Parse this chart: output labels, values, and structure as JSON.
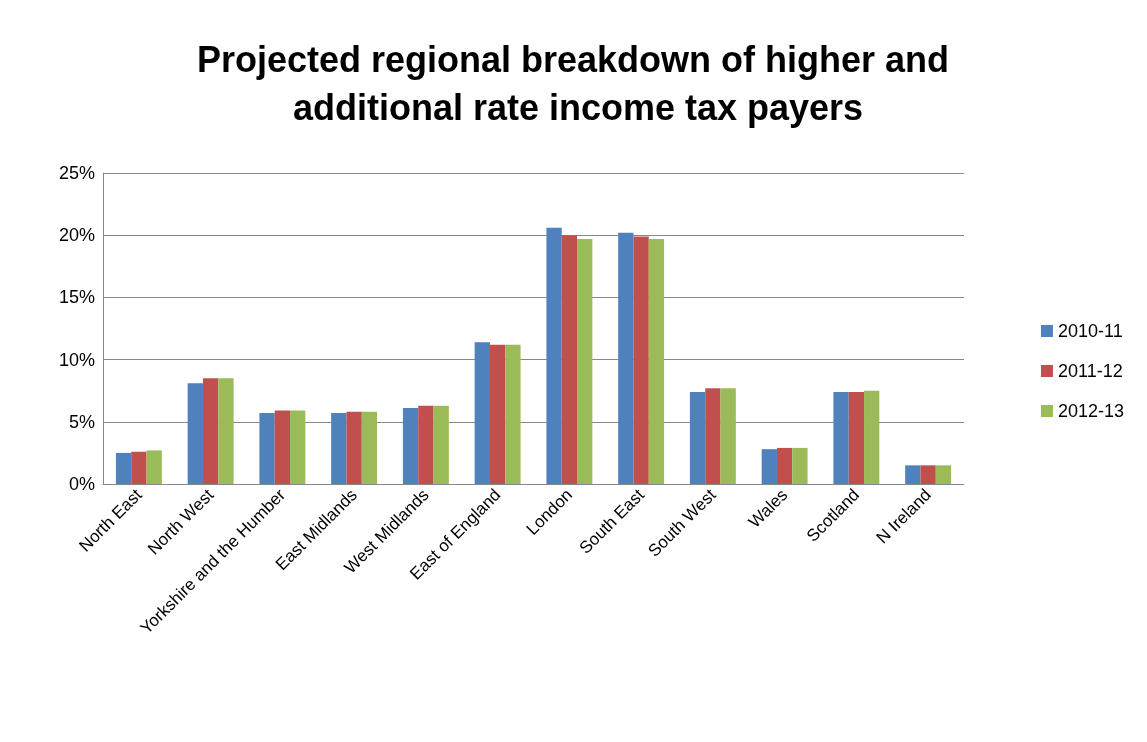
{
  "chart_data": {
    "type": "bar",
    "title": "Projected regional breakdown of higher and additional rate income tax payers",
    "categories": [
      "North East",
      "North West",
      "Yorkshire and the Humber",
      "East Midlands",
      "West Midlands",
      "East of England",
      "London",
      "South East",
      "South West",
      "Wales",
      "Scotland",
      "N Ireland"
    ],
    "series": [
      {
        "name": "2010-11",
        "color": "#4f81bd",
        "values": [
          2.5,
          8.1,
          5.7,
          5.7,
          6.1,
          11.4,
          20.6,
          20.2,
          7.4,
          2.8,
          7.4,
          1.5
        ]
      },
      {
        "name": "2011-12",
        "color": "#c0504d",
        "values": [
          2.6,
          8.5,
          5.9,
          5.8,
          6.3,
          11.2,
          20.0,
          19.9,
          7.7,
          2.9,
          7.4,
          1.5
        ]
      },
      {
        "name": "2012-13",
        "color": "#9bbb59",
        "values": [
          2.7,
          8.5,
          5.9,
          5.8,
          6.3,
          11.2,
          19.7,
          19.7,
          7.7,
          2.9,
          7.5,
          1.5
        ]
      }
    ],
    "ylim": [
      0,
      25
    ],
    "yticks": [
      {
        "value": 0,
        "label": "0%"
      },
      {
        "value": 5,
        "label": "5%"
      },
      {
        "value": 10,
        "label": "10%"
      },
      {
        "value": 15,
        "label": "15%"
      },
      {
        "value": 20,
        "label": "20%"
      },
      {
        "value": 25,
        "label": "25%"
      }
    ],
    "grid": "y",
    "legend": "right"
  }
}
